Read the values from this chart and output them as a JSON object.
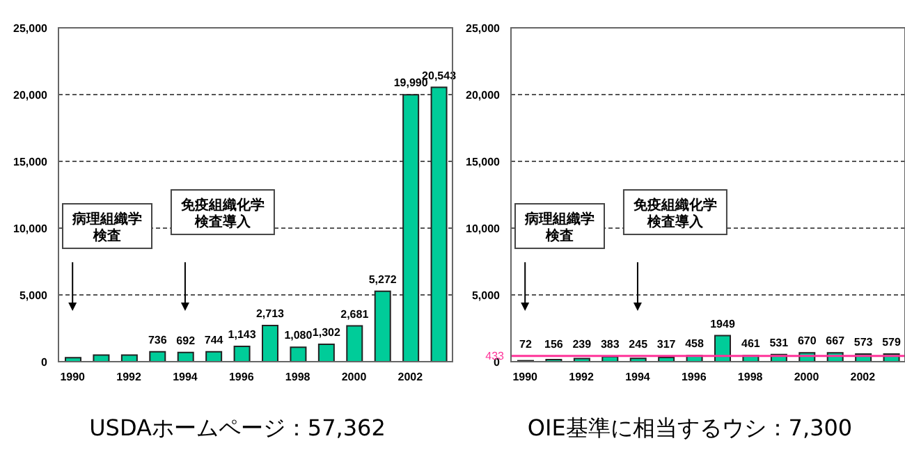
{
  "chart_data": [
    {
      "type": "bar",
      "title": "USDAホームページ：57,362",
      "categories": [
        "1990",
        null,
        "1992",
        null,
        "1994",
        null,
        "1996",
        null,
        "1998",
        null,
        "2000",
        null,
        "2002",
        null
      ],
      "values": [
        300,
        500,
        500,
        736,
        692,
        744,
        1143,
        2713,
        1080,
        1302,
        2681,
        5272,
        19990,
        20543
      ],
      "color": "#00cc99",
      "value_labels": [
        null,
        null,
        null,
        "736",
        "692",
        "744",
        "1,143",
        "2,713",
        "1,080",
        "1,302",
        "2,681",
        "5,272",
        "19,990",
        "20,543"
      ],
      "ylim": [
        0,
        25000
      ],
      "yticks": [
        0,
        {
          "value": 5000,
          "label": "5,000"
        },
        {
          "value": 10000,
          "label": "10,000"
        },
        {
          "value": 15000,
          "label": "15,000"
        },
        {
          "value": 20000,
          "label": "20,000"
        },
        {
          "value": 25000,
          "label": "25,000"
        }
      ],
      "grid": "y",
      "annotations": [
        "病理組織学検査",
        "免疫組織化学検査導入"
      ]
    },
    {
      "type": "bar",
      "title": "OIE基準に相当するウシ：7,300",
      "categories": [
        "1990",
        null,
        "1992",
        null,
        "1994",
        null,
        "1996",
        null,
        "1998",
        null,
        "2000",
        null,
        "2002",
        null
      ],
      "values": [
        72,
        156,
        239,
        383,
        245,
        317,
        458,
        1949,
        461,
        531,
        670,
        667,
        573,
        579
      ],
      "color": "#00cc99",
      "data_labels": true,
      "ylim": [
        0,
        25000
      ],
      "yticks": [
        0,
        {
          "value": 5000,
          "label": "5,000"
        },
        {
          "value": 10000,
          "label": "10,000"
        },
        {
          "value": 15000,
          "label": "15,000"
        },
        {
          "value": 20000,
          "label": "20,000"
        },
        {
          "value": 25000,
          "label": "25,000"
        }
      ],
      "grid": "y",
      "ref_lines": [
        {
          "axis": "y",
          "value": 433,
          "label": "433",
          "color": "#ff3399"
        }
      ],
      "annotations": [
        "病理組織学検査",
        "免疫組織化学検査導入"
      ]
    }
  ]
}
